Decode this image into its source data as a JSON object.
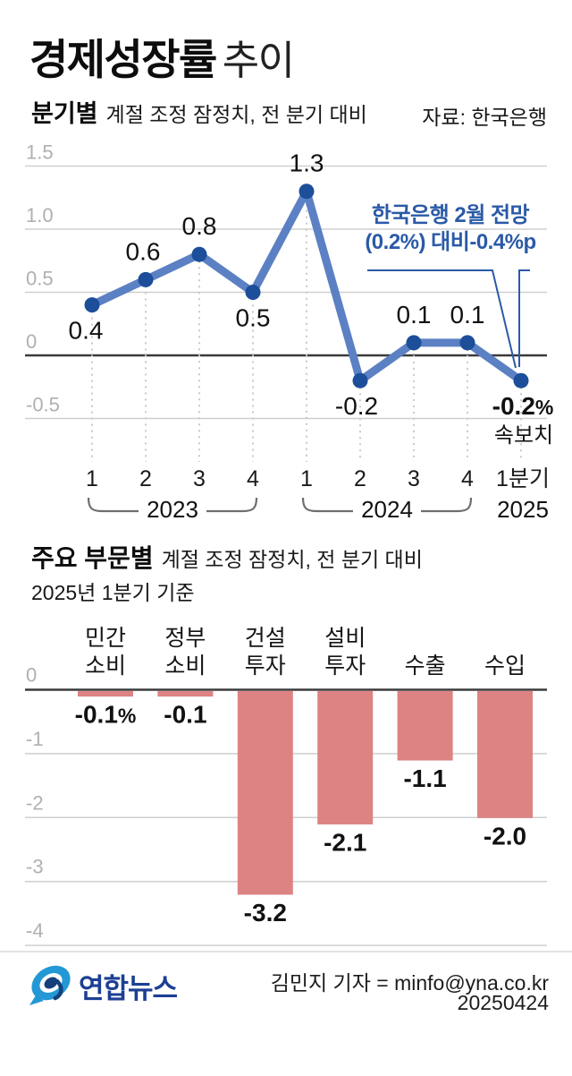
{
  "page": {
    "title_bold": "경제성장률",
    "title_regular": "추이"
  },
  "quarterly_section": {
    "heading_bold": "분기별",
    "heading_note": "계절 조정 잠정치, 전 분기 대비",
    "source": "자료: 한국은행",
    "annotation_line1": "한국은행 2월 전망",
    "annotation_line2": "(0.2%) 대비-0.4%p",
    "provisional_note": "속보치"
  },
  "sector_section": {
    "heading_bold": "주요 부문별",
    "heading_note": "계절 조정 잠정치, 전 분기 대비",
    "basis": "2025년 1분기 기준"
  },
  "footer": {
    "agency": "연합뉴스",
    "credit": "김민지 기자 = minfo@yna.co.kr",
    "date": "20250424"
  },
  "colors": {
    "line": "#5b80c4",
    "dot": "#1c4e9a",
    "bar": "#dd8383",
    "annotation_blue": "#2b5aa7",
    "axis_gray": "#b0b0b0",
    "grid": "#cfcfcf",
    "dotted_guide": "#c9c9c9",
    "zero_line": "#3a3a3a",
    "bracket_gray": "#6e6e6e",
    "agency_blue": "#1d3f94",
    "logo_blue": "#2398d5",
    "logo_navy": "#16407c"
  },
  "chart_data": [
    {
      "type": "line",
      "title": "분기별 경제성장률 추이, 계절 조정 잠정치, 전 분기 대비 (%)",
      "x": [
        "1",
        "2",
        "3",
        "4",
        "1",
        "2",
        "3",
        "4",
        "1분기"
      ],
      "year_groups": [
        {
          "label": "2023",
          "from": 0,
          "to": 3
        },
        {
          "label": "2024",
          "from": 4,
          "to": 7
        },
        {
          "label": "2025",
          "from": 8,
          "to": 8
        }
      ],
      "values": [
        0.4,
        0.6,
        0.8,
        0.5,
        1.3,
        -0.2,
        0.1,
        0.1,
        -0.2
      ],
      "value_labels": [
        "0.4",
        "0.6",
        "0.8",
        "0.5",
        "1.3",
        "-0.2",
        "0.1",
        "0.1",
        "-0.2%"
      ],
      "label_side": [
        "below",
        "above",
        "above",
        "below",
        "above",
        "below",
        "above",
        "above",
        "below"
      ],
      "ylim": [
        -0.5,
        1.5
      ],
      "yticks": [
        1.5,
        1.0,
        0.5,
        0,
        -0.5
      ],
      "ytick_labels": [
        "1.5",
        "1.0",
        "0.5",
        "0",
        "-0.5"
      ],
      "grid": true,
      "legend": "none",
      "annotation": "한국은행 2월 전망 (0.2%) 대비-0.4%p",
      "annotation_target_index": 8,
      "last_point_note": "속보치"
    },
    {
      "type": "bar",
      "title": "주요 부문별, 계절 조정 잠정치, 전 분기 대비, 2025년 1분기 기준 (%)",
      "categories": [
        "민간 소비",
        "정부 소비",
        "건설 투자",
        "설비 투자",
        "수출",
        "수입"
      ],
      "category_lines": [
        [
          "민간",
          "소비"
        ],
        [
          "정부",
          "소비"
        ],
        [
          "건설",
          "투자"
        ],
        [
          "설비",
          "투자"
        ],
        [
          "수출"
        ],
        [
          "수입"
        ]
      ],
      "values": [
        -0.1,
        -0.1,
        -3.2,
        -2.1,
        -1.1,
        -2.0
      ],
      "value_labels": [
        "-0.1%",
        "-0.1",
        "-3.2",
        "-2.1",
        "-1.1",
        "-2.0"
      ],
      "ylim": [
        -4,
        0
      ],
      "yticks": [
        0,
        -1,
        -2,
        -3,
        -4
      ],
      "ytick_labels": [
        "0",
        "-1",
        "-2",
        "-3",
        "-4"
      ],
      "grid": true,
      "legend": "none"
    }
  ]
}
